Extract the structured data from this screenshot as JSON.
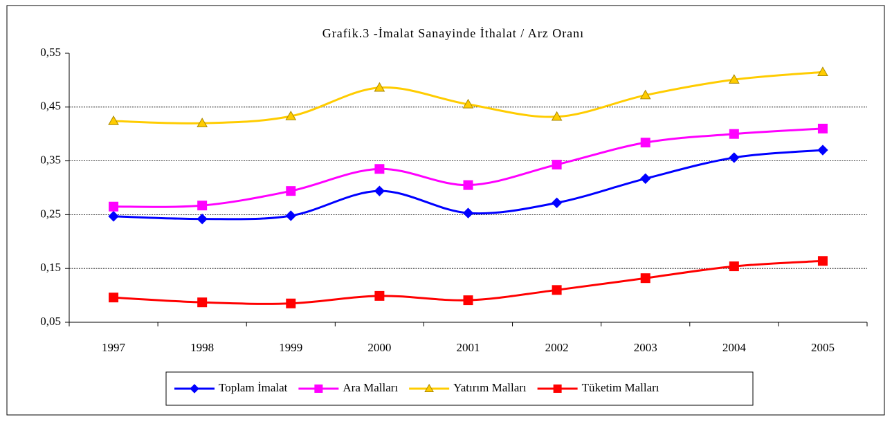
{
  "chart_data": {
    "type": "line",
    "title": "Grafik.3 -İmalat Sanayinde İthalat / Arz Oranı",
    "categories": [
      "1997",
      "1998",
      "1999",
      "2000",
      "2001",
      "2002",
      "2003",
      "2004",
      "2005"
    ],
    "series": [
      {
        "name": "Toplam İmalat",
        "color": "#0000ff",
        "marker": "diamond",
        "values": [
          0.247,
          0.242,
          0.248,
          0.294,
          0.253,
          0.272,
          0.317,
          0.356,
          0.37
        ]
      },
      {
        "name": "Ara Malları",
        "color": "#ff00ff",
        "marker": "square",
        "values": [
          0.265,
          0.267,
          0.294,
          0.335,
          0.305,
          0.343,
          0.384,
          0.4,
          0.41
        ]
      },
      {
        "name": "Yatırım Malları",
        "color": "#ffcc00",
        "marker": "triangle",
        "values": [
          0.424,
          0.42,
          0.433,
          0.486,
          0.455,
          0.432,
          0.472,
          0.501,
          0.515
        ]
      },
      {
        "name": "Tüketim Malları",
        "color": "#ff0000",
        "marker": "square",
        "values": [
          0.096,
          0.087,
          0.085,
          0.099,
          0.091,
          0.11,
          0.132,
          0.154,
          0.164
        ]
      }
    ],
    "ylim": [
      0.05,
      0.55
    ],
    "yticks": [
      {
        "value": 0.05,
        "label": "0,05"
      },
      {
        "value": 0.15,
        "label": "0,15"
      },
      {
        "value": 0.25,
        "label": "0,25"
      },
      {
        "value": 0.35,
        "label": "0,35"
      },
      {
        "value": 0.45,
        "label": "0,45"
      },
      {
        "value": 0.55,
        "label": "0,55"
      }
    ],
    "grid": true,
    "smooth": true,
    "legend": "bottom"
  }
}
